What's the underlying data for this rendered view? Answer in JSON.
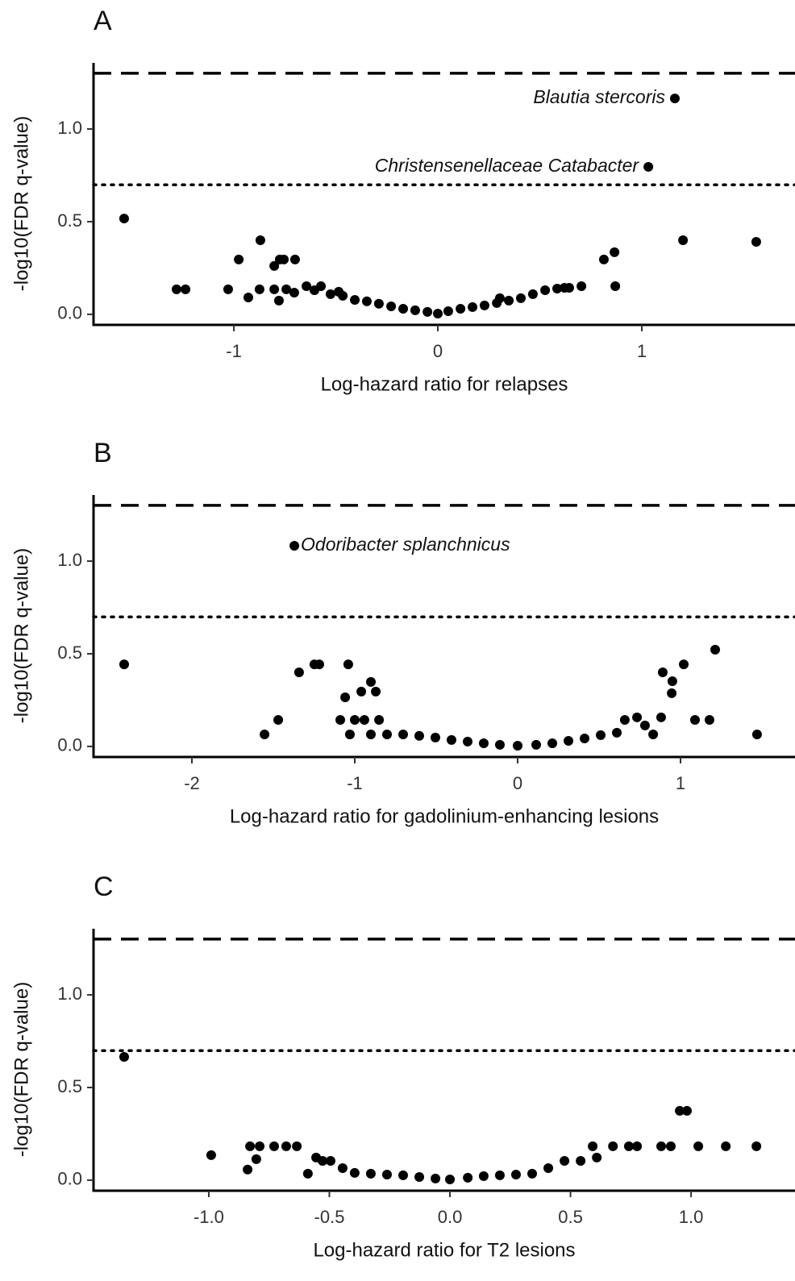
{
  "chart_data": [
    {
      "type": "scatter",
      "title": "A",
      "x_label": "Log-hazard ratio for relapses",
      "y_label": "-log10(FDR q-value)",
      "color": "#000000",
      "x": [
        -1.538,
        -1.281,
        -1.237,
        -1.028,
        -0.976,
        -0.929,
        -0.87,
        -0.874,
        -0.802,
        -0.775,
        -0.755,
        -0.7,
        -0.802,
        -0.779,
        -0.743,
        -0.704,
        -0.644,
        -0.605,
        -0.573,
        -0.526,
        -0.486,
        -0.466,
        -0.407,
        -0.348,
        -0.289,
        -0.229,
        -0.17,
        -0.111,
        -0.051,
        0,
        0.051,
        0.111,
        0.17,
        0.229,
        0.289,
        0.304,
        0.348,
        0.407,
        0.466,
        0.526,
        0.585,
        0.621,
        0.644,
        0.704,
        0.814,
        0.866,
        0.87,
        1.032,
        1.162,
        1.202,
        1.561
      ],
      "values": [
        0.517,
        0.135,
        0.135,
        0.135,
        0.296,
        0.091,
        0.4,
        0.135,
        0.261,
        0.296,
        0.296,
        0.296,
        0.135,
        0.074,
        0.135,
        0.117,
        0.152,
        0.13,
        0.152,
        0.109,
        0.122,
        0.1,
        0.078,
        0.07,
        0.057,
        0.043,
        0.03,
        0.022,
        0.013,
        0.004,
        0.017,
        0.03,
        0.039,
        0.048,
        0.061,
        0.087,
        0.074,
        0.087,
        0.109,
        0.13,
        0.139,
        0.143,
        0.143,
        0.152,
        0.296,
        0.335,
        0.152,
        0.796,
        1.165,
        0.4,
        0.391
      ],
      "annotations": [
        {
          "text": "Blautia stercoris",
          "x": 1.162,
          "y": 1.165,
          "position": "left"
        },
        {
          "text": "Christensenellaceae Catabacter",
          "x": 1.032,
          "y": 0.796,
          "position": "left"
        }
      ],
      "hlines": [
        {
          "value": 1.301,
          "style": "dashed"
        },
        {
          "value": 0.699,
          "style": "dotted"
        }
      ],
      "xlim": [
        -1.688,
        1.751
      ],
      "ylim": [
        -0.057,
        1.357
      ],
      "xticks": [
        -1,
        0,
        1
      ],
      "yticks": [
        {
          "value": 0,
          "label": "0.0"
        },
        {
          "value": 0.5,
          "label": "0.5"
        },
        {
          "value": 1,
          "label": "1.0"
        }
      ]
    },
    {
      "type": "scatter",
      "title": "B",
      "x_label": "Log-hazard ratio for gadolinium-enhancing lesions",
      "y_label": "-log10(FDR q-value)",
      "color": "#000000",
      "x": [
        -2.416,
        -1.554,
        -1.47,
        -1.342,
        -1.371,
        -1.248,
        -1.218,
        -1.089,
        -1.04,
        -1.059,
        -1.03,
        -1.0,
        -0.96,
        -0.901,
        -0.871,
        -0.941,
        -0.851,
        -0.901,
        -0.802,
        -0.703,
        -0.604,
        -0.505,
        -0.406,
        -0.307,
        -0.208,
        -0.109,
        0,
        0.114,
        0.213,
        0.312,
        0.411,
        0.51,
        0.609,
        0.658,
        0.733,
        0.782,
        0.832,
        0.881,
        0.891,
        0.95,
        0.946,
        1.02,
        1.089,
        1.178,
        1.213,
        1.47
      ],
      "values": [
        0.443,
        0.065,
        0.143,
        0.4,
        1.083,
        0.443,
        0.443,
        0.143,
        0.443,
        0.265,
        0.065,
        0.143,
        0.296,
        0.348,
        0.296,
        0.143,
        0.143,
        0.065,
        0.065,
        0.065,
        0.057,
        0.048,
        0.035,
        0.026,
        0.017,
        0.009,
        0.004,
        0.009,
        0.017,
        0.03,
        0.043,
        0.061,
        0.074,
        0.143,
        0.157,
        0.113,
        0.065,
        0.157,
        0.4,
        0.352,
        0.287,
        0.443,
        0.143,
        0.143,
        0.522,
        0.065
      ],
      "annotations": [
        {
          "text": "Odoribacter splanchnicus",
          "x": -1.371,
          "y": 1.083,
          "position": "right"
        }
      ],
      "hlines": [
        {
          "value": 1.301,
          "style": "dashed"
        },
        {
          "value": 0.699,
          "style": "dotted"
        }
      ],
      "xlim": [
        -2.604,
        1.703
      ],
      "ylim": [
        -0.057,
        1.357
      ],
      "xticks": [
        -2,
        -1,
        0,
        1
      ],
      "yticks": [
        {
          "value": 0,
          "label": "0.0"
        },
        {
          "value": 0.5,
          "label": "0.5"
        },
        {
          "value": 1,
          "label": "1.0"
        }
      ]
    },
    {
      "type": "scatter",
      "title": "C",
      "x_label": "Log-hazard ratio for T2 lesions",
      "y_label": "-log10(FDR q-value)",
      "color": "#000000",
      "x": [
        -1.351,
        -0.99,
        -0.839,
        -0.829,
        -0.803,
        -0.789,
        -0.729,
        -0.679,
        -0.635,
        -0.589,
        -0.555,
        -0.528,
        -0.495,
        -0.445,
        -0.395,
        -0.328,
        -0.261,
        -0.194,
        -0.127,
        -0.06,
        0,
        0.074,
        0.14,
        0.207,
        0.274,
        0.341,
        0.408,
        0.475,
        0.542,
        0.592,
        0.609,
        0.676,
        0.742,
        0.776,
        0.876,
        0.916,
        0.953,
        0.983,
        1.03,
        1.144,
        1.271
      ],
      "values": [
        0.665,
        0.135,
        0.057,
        0.183,
        0.113,
        0.183,
        0.183,
        0.183,
        0.183,
        0.035,
        0.122,
        0.104,
        0.104,
        0.065,
        0.039,
        0.035,
        0.03,
        0.026,
        0.017,
        0.009,
        0.004,
        0.013,
        0.022,
        0.026,
        0.03,
        0.035,
        0.065,
        0.104,
        0.104,
        0.183,
        0.122,
        0.183,
        0.183,
        0.183,
        0.183,
        0.183,
        0.374,
        0.374,
        0.183,
        0.183,
        0.183
      ],
      "annotations": [],
      "hlines": [
        {
          "value": 1.301,
          "style": "dashed"
        },
        {
          "value": 0.699,
          "style": "dotted"
        }
      ],
      "xlim": [
        -1.478,
        1.431
      ],
      "ylim": [
        -0.057,
        1.357
      ],
      "xticks": [
        {
          "value": -1,
          "label": "-1.0"
        },
        {
          "value": -0.5,
          "label": "-0.5"
        },
        {
          "value": 0,
          "label": "0.0"
        },
        {
          "value": 0.5,
          "label": "0.5"
        },
        {
          "value": 1,
          "label": "1.0"
        }
      ],
      "yticks": [
        {
          "value": 0,
          "label": "0.0"
        },
        {
          "value": 0.5,
          "label": "0.5"
        },
        {
          "value": 1,
          "label": "1.0"
        }
      ]
    }
  ]
}
